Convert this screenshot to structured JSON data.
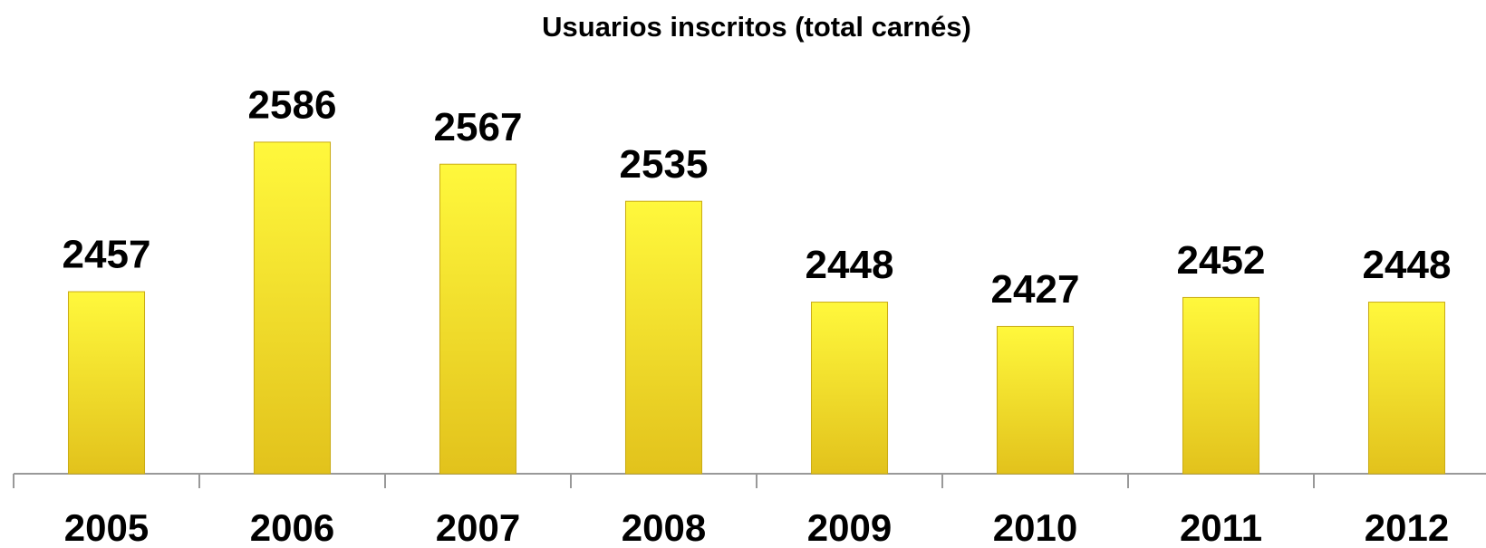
{
  "chart_data": {
    "type": "bar",
    "title": "Usuarios inscritos (total carnés)",
    "categories": [
      "2005",
      "2006",
      "2007",
      "2008",
      "2009",
      "2010",
      "2011",
      "2012"
    ],
    "values": [
      2457,
      2586,
      2567,
      2535,
      2448,
      2427,
      2452,
      2448
    ],
    "color": "#f5e02a",
    "ylim": [
      2300,
      2700
    ]
  }
}
